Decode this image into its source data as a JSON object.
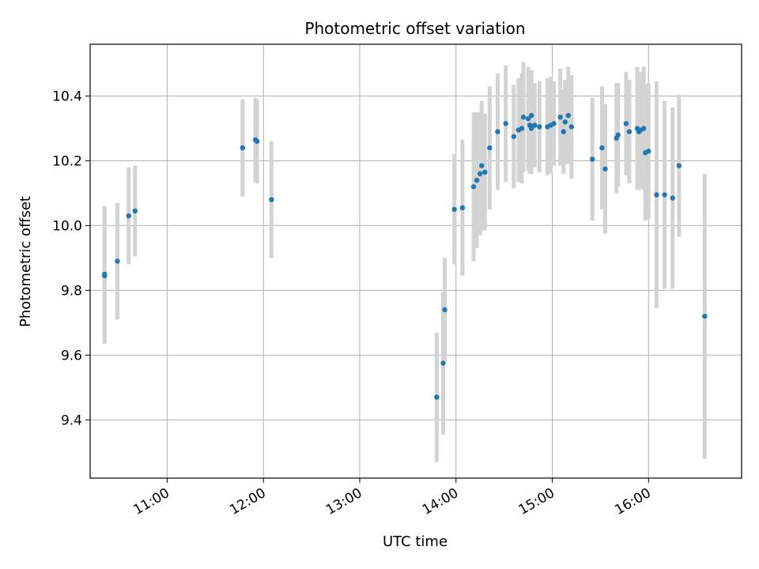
{
  "chart_data": {
    "type": "scatter",
    "title": "Photometric offset variation",
    "xlabel": "UTC time",
    "ylabel": "Photometric offset",
    "x_unit": "UTC time (HH:MM)",
    "xlim": [
      "10:12",
      "16:58"
    ],
    "ylim": [
      9.22,
      10.56
    ],
    "xticks": [
      "11:00",
      "12:00",
      "13:00",
      "14:00",
      "15:00",
      "16:00"
    ],
    "yticks": [
      9.4,
      9.6,
      9.8,
      10.0,
      10.2,
      10.4
    ],
    "grid": true,
    "colors": {
      "point": "#1f77b4",
      "errorbar": "#d3d3d3",
      "grid": "#b0b0b0"
    },
    "series": [
      {
        "x": [
          "10:21",
          "10:21",
          "10:29",
          "10:36",
          "10:40",
          "11:47",
          "11:55",
          "11:56",
          "12:05",
          "13:48",
          "13:52",
          "13:53",
          "13:59",
          "14:04",
          "14:11",
          "14:13",
          "14:15",
          "14:16",
          "14:18",
          "14:21",
          "14:26",
          "14:31",
          "14:36",
          "14:39",
          "14:41",
          "14:42",
          "14:45",
          "14:46",
          "14:47",
          "14:47",
          "14:49",
          "14:52",
          "14:57",
          "14:59",
          "15:01",
          "15:05",
          "15:07",
          "15:08",
          "15:10",
          "15:12",
          "15:25",
          "15:31",
          "15:33",
          "15:40",
          "15:41",
          "15:46",
          "15:48",
          "15:53",
          "15:54",
          "15:55",
          "15:57",
          "15:58",
          "16:00",
          "16:05",
          "16:10",
          "16:15",
          "16:19",
          "16:35"
        ],
        "y": [
          9.85,
          9.845,
          9.89,
          10.03,
          10.045,
          10.24,
          10.265,
          10.26,
          10.08,
          9.47,
          9.575,
          9.74,
          10.05,
          10.055,
          10.12,
          10.14,
          10.16,
          10.185,
          10.165,
          10.24,
          10.29,
          10.315,
          10.275,
          10.295,
          10.3,
          10.335,
          10.33,
          10.31,
          10.3,
          10.34,
          10.31,
          10.305,
          10.305,
          10.31,
          10.315,
          10.335,
          10.29,
          10.32,
          10.34,
          10.305,
          10.205,
          10.24,
          10.175,
          10.27,
          10.28,
          10.315,
          10.29,
          10.3,
          10.29,
          10.295,
          10.3,
          10.225,
          10.23,
          10.095,
          10.095,
          10.085,
          10.185,
          9.72
        ],
        "yerr": [
          0.21,
          0.21,
          0.18,
          0.15,
          0.14,
          0.15,
          0.13,
          0.13,
          0.18,
          0.2,
          0.22,
          0.16,
          0.17,
          0.21,
          0.23,
          0.21,
          0.19,
          0.2,
          0.18,
          0.19,
          0.18,
          0.18,
          0.16,
          0.16,
          0.17,
          0.17,
          0.16,
          0.15,
          0.14,
          0.14,
          0.13,
          0.14,
          0.15,
          0.15,
          0.13,
          0.15,
          0.13,
          0.13,
          0.15,
          0.16,
          0.19,
          0.19,
          0.2,
          0.17,
          0.16,
          0.16,
          0.16,
          0.19,
          0.18,
          0.18,
          0.19,
          0.21,
          0.21,
          0.35,
          0.29,
          0.28,
          0.22,
          0.44
        ]
      }
    ]
  }
}
